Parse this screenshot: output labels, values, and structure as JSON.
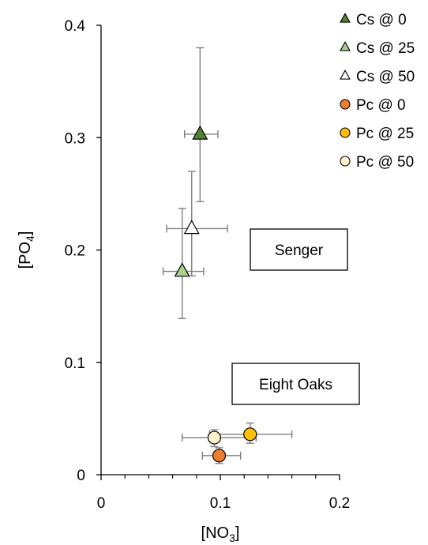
{
  "chart_data": {
    "type": "scatter",
    "title": "",
    "xlabel": "[NO3]",
    "xlabel_parts": {
      "main": "[NO",
      "sub": "3",
      "tail": "]"
    },
    "ylabel": "[PO4]",
    "ylabel_parts": {
      "main": "[PO",
      "sub": "4",
      "tail": "]"
    },
    "xlim": [
      0,
      0.2
    ],
    "ylim": [
      0,
      0.4
    ],
    "xticks": [
      0,
      0.1,
      0.2
    ],
    "xtick_labels": [
      "0",
      "0.1",
      "0.2"
    ],
    "yticks": [
      0,
      0.1,
      0.2,
      0.3,
      0.4
    ],
    "ytick_labels": [
      "0",
      "0.1",
      "0.2",
      "0.3",
      "0.4"
    ],
    "grid": false,
    "legend_position": "right",
    "series": [
      {
        "name": "Cs @ 0",
        "marker": "triangle",
        "color": "#548235",
        "points": [
          {
            "x": 0.083,
            "y": 0.303,
            "xerr": [
              0.07,
              0.098
            ],
            "yerr": [
              0.243,
              0.38
            ]
          }
        ]
      },
      {
        "name": "Cs @ 25",
        "marker": "triangle",
        "color": "#a9d18e",
        "points": [
          {
            "x": 0.068,
            "y": 0.181,
            "xerr": [
              0.052,
              0.086
            ],
            "yerr": [
              0.139,
              0.237
            ]
          }
        ]
      },
      {
        "name": "Cs @ 50",
        "marker": "triangle",
        "color": "#ffffff",
        "points": [
          {
            "x": 0.076,
            "y": 0.219,
            "xerr": [
              0.055,
              0.106
            ],
            "yerr": [
              0.177,
              0.27
            ]
          }
        ]
      },
      {
        "name": "Pc @ 0",
        "marker": "circle",
        "color": "#ed7d31",
        "points": [
          {
            "x": 0.099,
            "y": 0.017,
            "xerr": [
              0.085,
              0.117
            ],
            "yerr": [
              0.01,
              0.024
            ]
          }
        ]
      },
      {
        "name": "Pc @ 25",
        "marker": "circle",
        "color": "#ffc000",
        "points": [
          {
            "x": 0.125,
            "y": 0.036,
            "xerr": [
              0.091,
              0.16
            ],
            "yerr": [
              0.028,
              0.046
            ]
          }
        ]
      },
      {
        "name": "Pc @ 50",
        "marker": "circle",
        "color": "#fff2cc",
        "points": [
          {
            "x": 0.095,
            "y": 0.033,
            "xerr": [
              0.068,
              0.13
            ],
            "yerr": [
              0.025,
              0.04
            ]
          }
        ]
      }
    ],
    "annotations": [
      {
        "text": "Senger"
      },
      {
        "text": "Eight Oaks"
      }
    ]
  }
}
